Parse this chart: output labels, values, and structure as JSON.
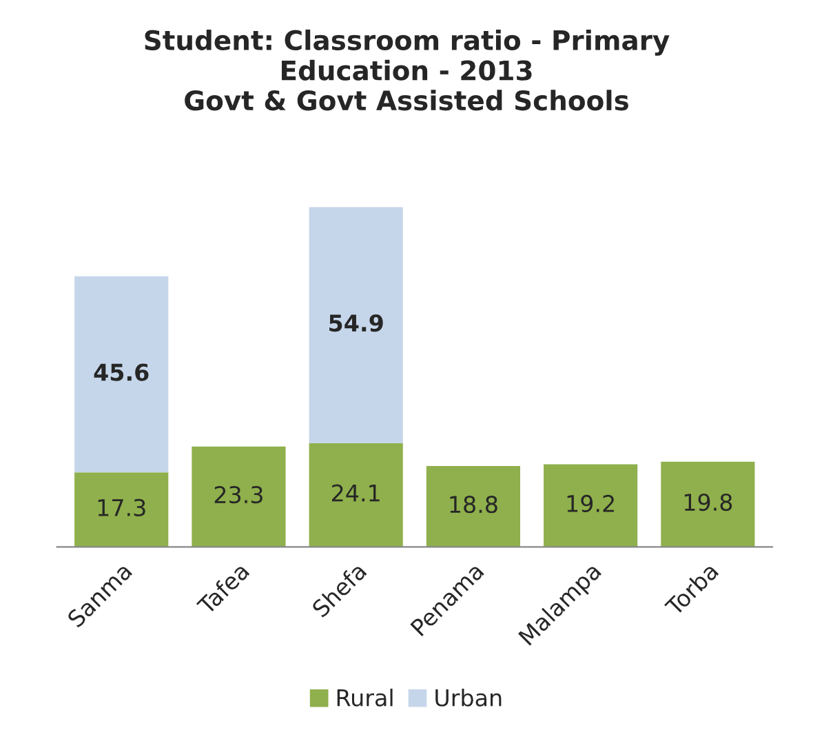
{
  "chart_data": {
    "type": "bar",
    "stacked": true,
    "title": "Student: Classroom ratio - Primary\nEducation - 2013\nGovt & Govt Assisted Schools",
    "categories": [
      "Sanma",
      "Tafea",
      "Shefa",
      "Penama",
      "Malampa",
      "Torba"
    ],
    "series": [
      {
        "name": "Rural",
        "color": "#8fb04c",
        "values": [
          17.3,
          23.3,
          24.1,
          18.8,
          19.2,
          19.8
        ]
      },
      {
        "name": "Urban",
        "color": "#c6d6ea",
        "values": [
          45.6,
          null,
          54.9,
          null,
          null,
          null
        ]
      }
    ],
    "data_labels": true,
    "legend": "bottom",
    "grid": false
  }
}
